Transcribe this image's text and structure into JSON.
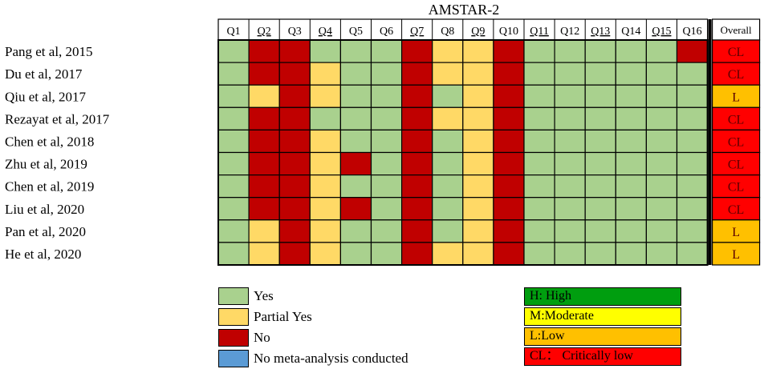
{
  "chart_data": {
    "type": "heatmap",
    "title": "AMSTAR-2",
    "columns": [
      "Q1",
      "Q2",
      "Q3",
      "Q4",
      "Q5",
      "Q6",
      "Q7",
      "Q8",
      "Q9",
      "Q10",
      "Q11",
      "Q12",
      "Q13",
      "Q14",
      "Q15",
      "Q16"
    ],
    "underlined_columns": [
      "Q2",
      "Q4",
      "Q7",
      "Q9",
      "Q11",
      "Q13",
      "Q15"
    ],
    "overall_header": "Overall",
    "rows": [
      {
        "label": "Pang et al, 2015",
        "cells": [
          "Y",
          "N",
          "N",
          "Y",
          "Y",
          "Y",
          "N",
          "P",
          "P",
          "N",
          "Y",
          "Y",
          "Y",
          "Y",
          "Y",
          "N"
        ],
        "overall": "CL"
      },
      {
        "label": "Du et al, 2017",
        "cells": [
          "Y",
          "N",
          "N",
          "P",
          "Y",
          "Y",
          "N",
          "P",
          "P",
          "N",
          "Y",
          "Y",
          "Y",
          "Y",
          "Y",
          "Y"
        ],
        "overall": "CL"
      },
      {
        "label": "Qiu et al, 2017",
        "cells": [
          "Y",
          "P",
          "N",
          "P",
          "Y",
          "Y",
          "N",
          "Y",
          "P",
          "N",
          "Y",
          "Y",
          "Y",
          "Y",
          "Y",
          "Y"
        ],
        "overall": "L"
      },
      {
        "label": "Rezayat et al, 2017",
        "cells": [
          "Y",
          "N",
          "N",
          "Y",
          "Y",
          "Y",
          "N",
          "P",
          "P",
          "N",
          "Y",
          "Y",
          "Y",
          "Y",
          "Y",
          "Y"
        ],
        "overall": "CL"
      },
      {
        "label": "Chen et al, 2018",
        "cells": [
          "Y",
          "N",
          "N",
          "P",
          "Y",
          "Y",
          "N",
          "Y",
          "P",
          "N",
          "Y",
          "Y",
          "Y",
          "Y",
          "Y",
          "Y"
        ],
        "overall": "CL"
      },
      {
        "label": "Zhu et al, 2019",
        "cells": [
          "Y",
          "N",
          "N",
          "P",
          "N",
          "Y",
          "N",
          "Y",
          "P",
          "N",
          "Y",
          "Y",
          "Y",
          "Y",
          "Y",
          "Y"
        ],
        "overall": "CL"
      },
      {
        "label": "Chen et al, 2019",
        "cells": [
          "Y",
          "N",
          "N",
          "P",
          "Y",
          "Y",
          "N",
          "Y",
          "P",
          "N",
          "Y",
          "Y",
          "Y",
          "Y",
          "Y",
          "Y"
        ],
        "overall": "CL"
      },
      {
        "label": "Liu et al, 2020",
        "cells": [
          "Y",
          "N",
          "N",
          "P",
          "N",
          "Y",
          "N",
          "Y",
          "P",
          "N",
          "Y",
          "Y",
          "Y",
          "Y",
          "Y",
          "Y"
        ],
        "overall": "CL"
      },
      {
        "label": "Pan et al, 2020",
        "cells": [
          "Y",
          "P",
          "N",
          "P",
          "Y",
          "Y",
          "N",
          "Y",
          "P",
          "N",
          "Y",
          "Y",
          "Y",
          "Y",
          "Y",
          "Y"
        ],
        "overall": "L"
      },
      {
        "label": "He et al, 2020",
        "cells": [
          "Y",
          "P",
          "N",
          "P",
          "Y",
          "Y",
          "N",
          "P",
          "P",
          "N",
          "Y",
          "Y",
          "Y",
          "Y",
          "Y",
          "Y"
        ],
        "overall": "L"
      }
    ],
    "cell_legend": [
      {
        "code": "Y",
        "label": "Yes",
        "color": "#a9d18e"
      },
      {
        "code": "P",
        "label": "Partial Yes",
        "color": "#ffd966"
      },
      {
        "code": "N",
        "label": "No",
        "color": "#c00000"
      },
      {
        "code": "M",
        "label": "No meta-analysis conducted",
        "color": "#5b9bd5"
      }
    ],
    "overall_legend": [
      {
        "code": "H",
        "label": "H: High",
        "color": "#009e0f"
      },
      {
        "code": "M",
        "label": "M:Moderate",
        "color": "#ffff00"
      },
      {
        "code": "L",
        "label": "L:Low",
        "color": "#ffc000"
      },
      {
        "code": "CL",
        "label": "CL：  Critically low",
        "color": "#ff0000"
      }
    ]
  }
}
